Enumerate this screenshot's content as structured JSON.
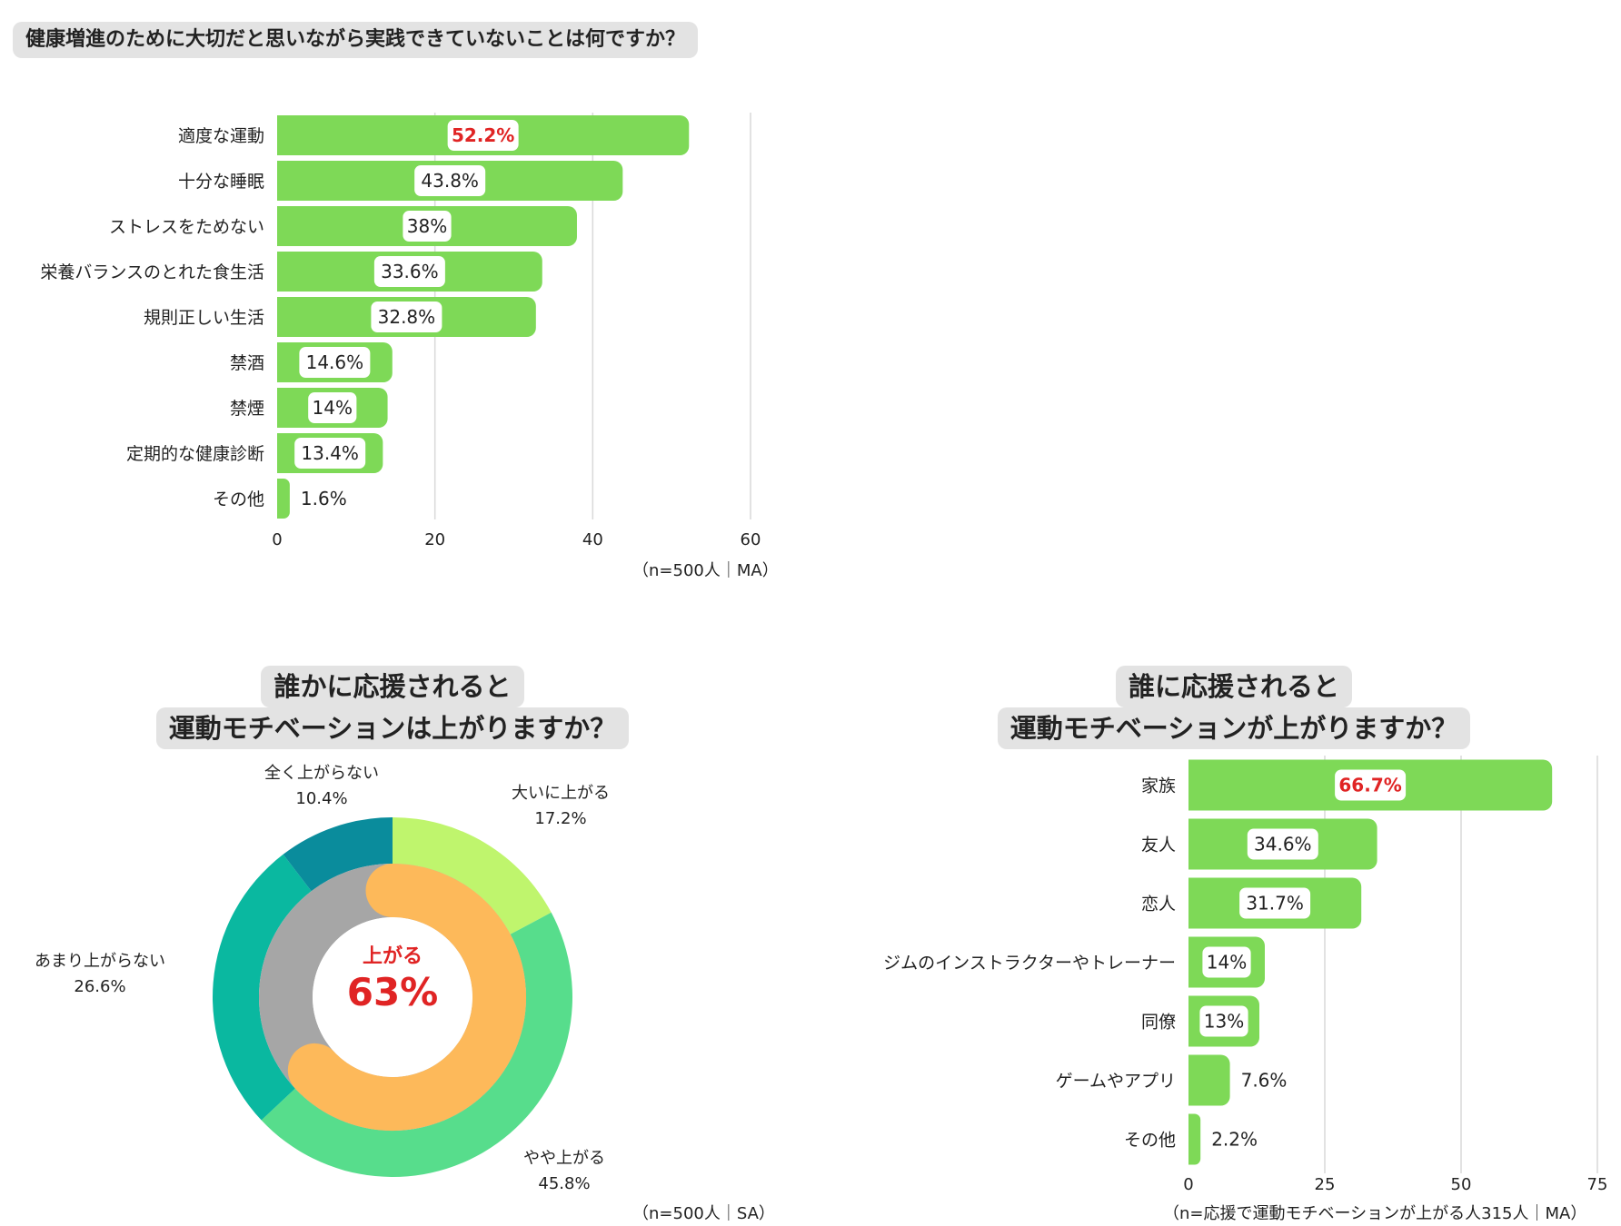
{
  "chart1": {
    "title": "健康増進のために大切だと思いながら実践できていないことは何ですか？",
    "note": "（n=500人｜MA）",
    "chart_data": {
      "type": "bar",
      "orientation": "horizontal",
      "categories": [
        "適度な運動",
        "十分な睡眠",
        "ストレスをためない",
        "栄養バランスのとれた食生活",
        "規則正しい生活",
        "禁酒",
        "禁煙",
        "定期的な健康診断",
        "その他"
      ],
      "values": [
        52.2,
        43.8,
        38,
        33.6,
        32.8,
        14.6,
        14,
        13.4,
        1.6
      ],
      "value_labels": [
        "52.2%",
        "43.8%",
        "38%",
        "33.6%",
        "32.8%",
        "14.6%",
        "14%",
        "13.4%",
        "1.6%"
      ],
      "highlight_index": 0,
      "xlim": [
        0,
        60
      ],
      "xticks": [
        0,
        20,
        40,
        60
      ],
      "grid": true
    }
  },
  "chart2": {
    "title_line1": "誰かに応援されると",
    "title_line2": "運動モチベーションは上がりますか？",
    "note": "（n=500人｜SA）",
    "center_label": "上がる",
    "center_value": "63%",
    "chart_data": {
      "type": "pie",
      "subtype": "donut",
      "categories": [
        "大いに上がる",
        "やや上がる",
        "あまり上がらない",
        "全く上がらない"
      ],
      "values": [
        17.2,
        45.8,
        26.6,
        10.4
      ],
      "value_labels": [
        "17.2%",
        "45.8%",
        "26.6%",
        "10.4%"
      ],
      "inner_ring": [
        {
          "name": "上がる",
          "value": 63
        },
        {
          "name": "",
          "value": 37
        }
      ]
    },
    "colors": {
      "great": "#bff56d",
      "somewhat": "#57dd8c",
      "not_much": "#0ab8a0",
      "not_at_all": "#0a8c9c",
      "inner_up": "#fdb95a",
      "inner_rest": "#a6a6a6",
      "center_text": "#e02424"
    }
  },
  "chart3": {
    "title_line1": "誰に応援されると",
    "title_line2": "運動モチベーションが上がりますか？",
    "note": "（n=応援で運動モチベーションが上がる人315人｜MA）",
    "chart_data": {
      "type": "bar",
      "orientation": "horizontal",
      "categories": [
        "家族",
        "友人",
        "恋人",
        "ジムのインストラクターやトレーナー",
        "同僚",
        "ゲームやアプリ",
        "その他"
      ],
      "values": [
        66.7,
        34.6,
        31.7,
        14,
        13,
        7.6,
        2.2
      ],
      "value_labels": [
        "66.7%",
        "34.6%",
        "31.7%",
        "14%",
        "13%",
        "7.6%",
        "2.2%"
      ],
      "highlight_index": 0,
      "xlim": [
        0,
        75
      ],
      "xticks": [
        0,
        25,
        50,
        75
      ],
      "grid": true
    }
  },
  "colors": {
    "bar": "#7ed957",
    "highlight_text": "#e02424",
    "grid": "#d9d9d9",
    "title_bg": "#e3e3e3"
  }
}
